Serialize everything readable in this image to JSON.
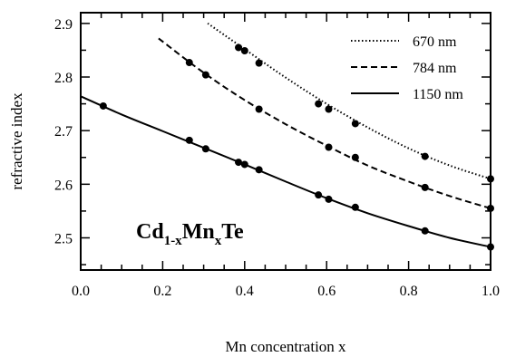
{
  "chart_data": {
    "type": "line",
    "xlabel": "Mn concentration x",
    "ylabel": "refractive index",
    "xlim": [
      0.0,
      1.0
    ],
    "ylim": [
      2.44,
      2.92
    ],
    "x_ticks": [
      "0.0",
      "0.2",
      "0.4",
      "0.6",
      "0.8",
      "1.0"
    ],
    "y_ticks": [
      "2.5",
      "2.6",
      "2.7",
      "2.8",
      "2.9"
    ],
    "annotation": {
      "base1": "Cd",
      "sub1": "1-x",
      "base2": "Mn",
      "sub2": "x",
      "base3": "Te"
    },
    "legend_position": "top-right",
    "grid": false,
    "series": [
      {
        "name": "670 nm",
        "line_style": "dotted",
        "curve_x": [
          0.31,
          1.0
        ],
        "points": [
          [
            0.385,
            2.855
          ],
          [
            0.4,
            2.849
          ],
          [
            0.435,
            2.826
          ],
          [
            0.58,
            2.75
          ],
          [
            0.605,
            2.74
          ],
          [
            0.67,
            2.713
          ],
          [
            0.84,
            2.652
          ],
          [
            1.0,
            2.61
          ]
        ],
        "curve_fit": [
          [
            0.31,
            2.9
          ],
          [
            0.4,
            2.852
          ],
          [
            0.5,
            2.799
          ],
          [
            0.6,
            2.75
          ],
          [
            0.7,
            2.706
          ],
          [
            0.8,
            2.667
          ],
          [
            0.9,
            2.635
          ],
          [
            1.0,
            2.61
          ]
        ]
      },
      {
        "name": "784 nm",
        "line_style": "dashed",
        "curve_x": [
          0.19,
          1.0
        ],
        "points": [
          [
            0.265,
            2.827
          ],
          [
            0.305,
            2.804
          ],
          [
            0.435,
            2.74
          ],
          [
            0.605,
            2.669
          ],
          [
            0.67,
            2.65
          ],
          [
            0.84,
            2.594
          ],
          [
            1.0,
            2.555
          ]
        ],
        "curve_fit": [
          [
            0.19,
            2.872
          ],
          [
            0.3,
            2.808
          ],
          [
            0.4,
            2.757
          ],
          [
            0.5,
            2.712
          ],
          [
            0.6,
            2.672
          ],
          [
            0.7,
            2.635
          ],
          [
            0.8,
            2.605
          ],
          [
            0.9,
            2.578
          ],
          [
            1.0,
            2.555
          ]
        ]
      },
      {
        "name": "1150 nm",
        "line_style": "solid",
        "curve_x": [
          0.0,
          1.0
        ],
        "points": [
          [
            0.055,
            2.746
          ],
          [
            0.265,
            2.682
          ],
          [
            0.305,
            2.666
          ],
          [
            0.385,
            2.641
          ],
          [
            0.4,
            2.637
          ],
          [
            0.435,
            2.627
          ],
          [
            0.58,
            2.58
          ],
          [
            0.605,
            2.572
          ],
          [
            0.67,
            2.557
          ],
          [
            0.84,
            2.513
          ],
          [
            1.0,
            2.483
          ]
        ],
        "curve_fit": [
          [
            0.0,
            2.764
          ],
          [
            0.1,
            2.73
          ],
          [
            0.2,
            2.699
          ],
          [
            0.3,
            2.668
          ],
          [
            0.4,
            2.637
          ],
          [
            0.5,
            2.605
          ],
          [
            0.6,
            2.574
          ],
          [
            0.7,
            2.546
          ],
          [
            0.8,
            2.522
          ],
          [
            0.9,
            2.5
          ],
          [
            1.0,
            2.483
          ]
        ]
      }
    ]
  }
}
